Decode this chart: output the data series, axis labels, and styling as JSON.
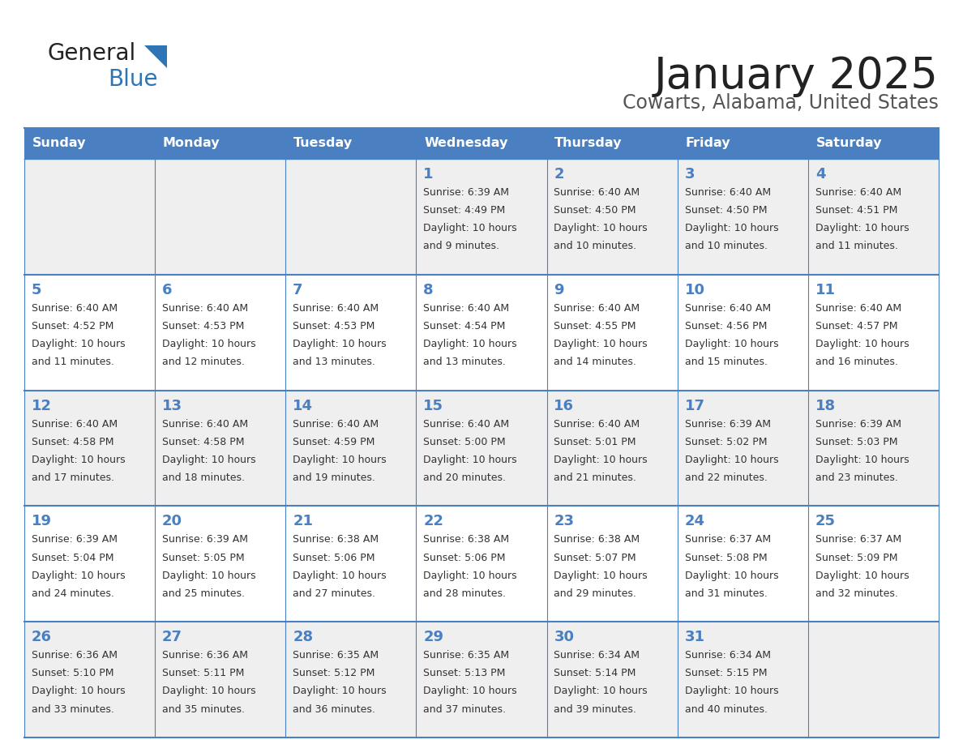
{
  "title": "January 2025",
  "subtitle": "Cowarts, Alabama, United States",
  "days_of_week": [
    "Sunday",
    "Monday",
    "Tuesday",
    "Wednesday",
    "Thursday",
    "Friday",
    "Saturday"
  ],
  "header_bg": "#4a7fc1",
  "header_text": "#FFFFFF",
  "cell_bg_odd": "#EFEFEF",
  "cell_bg_even": "#FFFFFF",
  "day_num_color": "#4a7fc1",
  "text_color": "#333333",
  "line_color": "#4a7fc1",
  "logo_general_color": "#222222",
  "logo_blue_color": "#2E75B6",
  "logo_triangle_color": "#2E75B6",
  "calendar_data": [
    [
      null,
      null,
      null,
      {
        "day": 1,
        "sunrise": "6:39 AM",
        "sunset": "4:49 PM",
        "daylight": "10 hours",
        "daylight2": "and 9 minutes."
      },
      {
        "day": 2,
        "sunrise": "6:40 AM",
        "sunset": "4:50 PM",
        "daylight": "10 hours",
        "daylight2": "and 10 minutes."
      },
      {
        "day": 3,
        "sunrise": "6:40 AM",
        "sunset": "4:50 PM",
        "daylight": "10 hours",
        "daylight2": "and 10 minutes."
      },
      {
        "day": 4,
        "sunrise": "6:40 AM",
        "sunset": "4:51 PM",
        "daylight": "10 hours",
        "daylight2": "and 11 minutes."
      }
    ],
    [
      {
        "day": 5,
        "sunrise": "6:40 AM",
        "sunset": "4:52 PM",
        "daylight": "10 hours",
        "daylight2": "and 11 minutes."
      },
      {
        "day": 6,
        "sunrise": "6:40 AM",
        "sunset": "4:53 PM",
        "daylight": "10 hours",
        "daylight2": "and 12 minutes."
      },
      {
        "day": 7,
        "sunrise": "6:40 AM",
        "sunset": "4:53 PM",
        "daylight": "10 hours",
        "daylight2": "and 13 minutes."
      },
      {
        "day": 8,
        "sunrise": "6:40 AM",
        "sunset": "4:54 PM",
        "daylight": "10 hours",
        "daylight2": "and 13 minutes."
      },
      {
        "day": 9,
        "sunrise": "6:40 AM",
        "sunset": "4:55 PM",
        "daylight": "10 hours",
        "daylight2": "and 14 minutes."
      },
      {
        "day": 10,
        "sunrise": "6:40 AM",
        "sunset": "4:56 PM",
        "daylight": "10 hours",
        "daylight2": "and 15 minutes."
      },
      {
        "day": 11,
        "sunrise": "6:40 AM",
        "sunset": "4:57 PM",
        "daylight": "10 hours",
        "daylight2": "and 16 minutes."
      }
    ],
    [
      {
        "day": 12,
        "sunrise": "6:40 AM",
        "sunset": "4:58 PM",
        "daylight": "10 hours",
        "daylight2": "and 17 minutes."
      },
      {
        "day": 13,
        "sunrise": "6:40 AM",
        "sunset": "4:58 PM",
        "daylight": "10 hours",
        "daylight2": "and 18 minutes."
      },
      {
        "day": 14,
        "sunrise": "6:40 AM",
        "sunset": "4:59 PM",
        "daylight": "10 hours",
        "daylight2": "and 19 minutes."
      },
      {
        "day": 15,
        "sunrise": "6:40 AM",
        "sunset": "5:00 PM",
        "daylight": "10 hours",
        "daylight2": "and 20 minutes."
      },
      {
        "day": 16,
        "sunrise": "6:40 AM",
        "sunset": "5:01 PM",
        "daylight": "10 hours",
        "daylight2": "and 21 minutes."
      },
      {
        "day": 17,
        "sunrise": "6:39 AM",
        "sunset": "5:02 PM",
        "daylight": "10 hours",
        "daylight2": "and 22 minutes."
      },
      {
        "day": 18,
        "sunrise": "6:39 AM",
        "sunset": "5:03 PM",
        "daylight": "10 hours",
        "daylight2": "and 23 minutes."
      }
    ],
    [
      {
        "day": 19,
        "sunrise": "6:39 AM",
        "sunset": "5:04 PM",
        "daylight": "10 hours",
        "daylight2": "and 24 minutes."
      },
      {
        "day": 20,
        "sunrise": "6:39 AM",
        "sunset": "5:05 PM",
        "daylight": "10 hours",
        "daylight2": "and 25 minutes."
      },
      {
        "day": 21,
        "sunrise": "6:38 AM",
        "sunset": "5:06 PM",
        "daylight": "10 hours",
        "daylight2": "and 27 minutes."
      },
      {
        "day": 22,
        "sunrise": "6:38 AM",
        "sunset": "5:06 PM",
        "daylight": "10 hours",
        "daylight2": "and 28 minutes."
      },
      {
        "day": 23,
        "sunrise": "6:38 AM",
        "sunset": "5:07 PM",
        "daylight": "10 hours",
        "daylight2": "and 29 minutes."
      },
      {
        "day": 24,
        "sunrise": "6:37 AM",
        "sunset": "5:08 PM",
        "daylight": "10 hours",
        "daylight2": "and 31 minutes."
      },
      {
        "day": 25,
        "sunrise": "6:37 AM",
        "sunset": "5:09 PM",
        "daylight": "10 hours",
        "daylight2": "and 32 minutes."
      }
    ],
    [
      {
        "day": 26,
        "sunrise": "6:36 AM",
        "sunset": "5:10 PM",
        "daylight": "10 hours",
        "daylight2": "and 33 minutes."
      },
      {
        "day": 27,
        "sunrise": "6:36 AM",
        "sunset": "5:11 PM",
        "daylight": "10 hours",
        "daylight2": "and 35 minutes."
      },
      {
        "day": 28,
        "sunrise": "6:35 AM",
        "sunset": "5:12 PM",
        "daylight": "10 hours",
        "daylight2": "and 36 minutes."
      },
      {
        "day": 29,
        "sunrise": "6:35 AM",
        "sunset": "5:13 PM",
        "daylight": "10 hours",
        "daylight2": "and 37 minutes."
      },
      {
        "day": 30,
        "sunrise": "6:34 AM",
        "sunset": "5:14 PM",
        "daylight": "10 hours",
        "daylight2": "and 39 minutes."
      },
      {
        "day": 31,
        "sunrise": "6:34 AM",
        "sunset": "5:15 PM",
        "daylight": "10 hours",
        "daylight2": "and 40 minutes."
      },
      null
    ]
  ]
}
